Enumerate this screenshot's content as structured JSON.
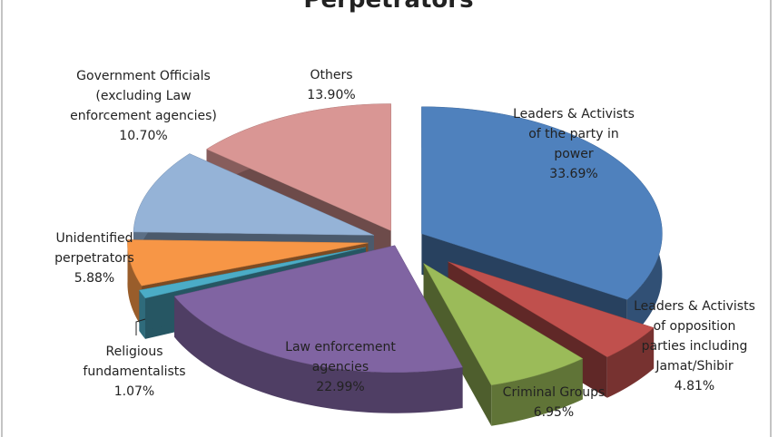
{
  "chart_data": {
    "type": "pie",
    "title": "Perpetrators",
    "categories": [
      "Leaders & Activists of the party in power",
      "Leaders & Activists of opposition parties including Jamat/Shibir",
      "Criminal Groups",
      "Law enforcement agencies",
      "Religious fundamentalists",
      "Unidentified perpetrators",
      "Government Officials (excluding Law enforcement agencies)",
      "Others"
    ],
    "values": [
      33.69,
      4.81,
      6.95,
      22.99,
      1.07,
      5.88,
      10.7,
      13.9
    ],
    "value_labels": [
      "33.69%",
      "4.81%",
      "6.95%",
      "22.99%",
      "1.07%",
      "5.88%",
      "10.70%",
      "13.90%"
    ],
    "colors": [
      "#4f81bd",
      "#c0504d",
      "#9bbb59",
      "#8064a2",
      "#4bacc6",
      "#f79646",
      "#95b3d7",
      "#d99694"
    ]
  }
}
